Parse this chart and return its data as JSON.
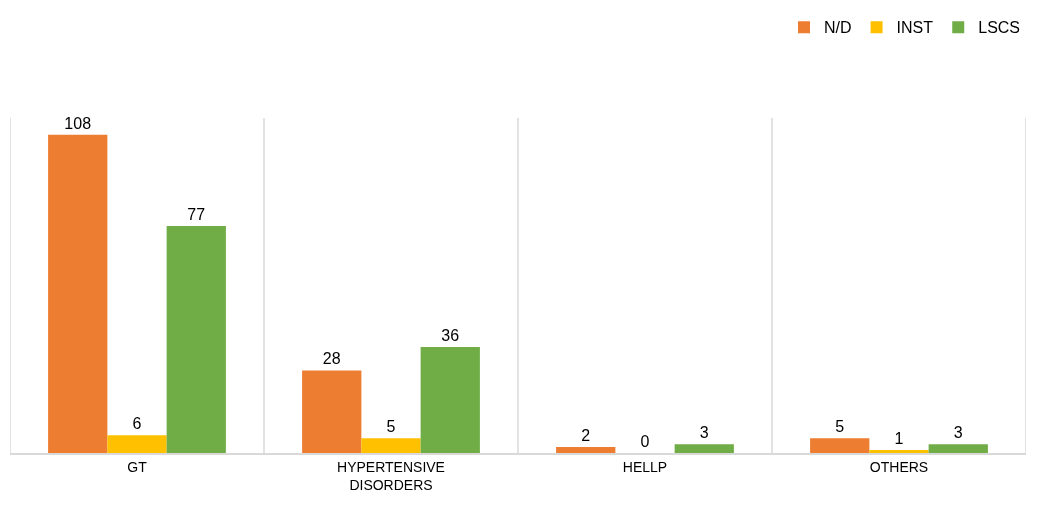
{
  "chart_data": {
    "type": "bar",
    "categories": [
      "GT",
      "HYPERTENSIVE DISORDERS",
      "HELLP",
      "OTHERS"
    ],
    "series": [
      {
        "name": "N/D",
        "color": "#ed7d31",
        "values": [
          108,
          28,
          2,
          5
        ]
      },
      {
        "name": "INST",
        "color": "#ffc000",
        "values": [
          6,
          5,
          0,
          1
        ]
      },
      {
        "name": "LSCS",
        "color": "#70ad47",
        "values": [
          77,
          36,
          3,
          3
        ]
      }
    ],
    "data_labels": true,
    "grid": "x",
    "legend": "top right",
    "tick_labels": "x"
  }
}
